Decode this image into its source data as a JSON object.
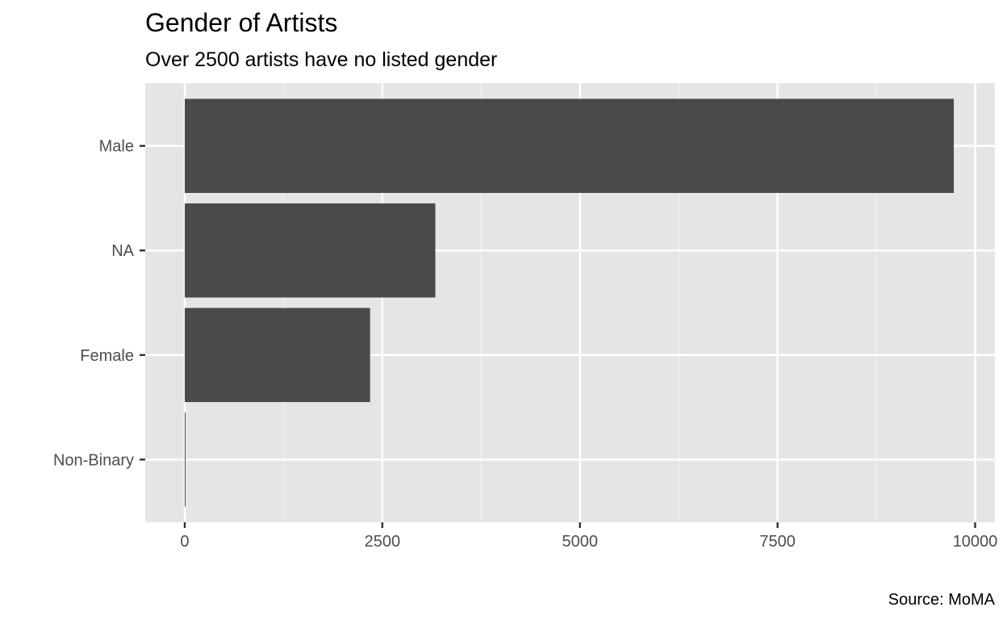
{
  "chart_data": {
    "type": "bar",
    "orientation": "horizontal",
    "title": "Gender of Artists",
    "subtitle": "Over 2500 artists have no listed gender",
    "caption": "Source: MoMA",
    "xlabel": "",
    "ylabel": "",
    "categories": [
      "Male",
      "NA",
      "Female",
      "Non-Binary"
    ],
    "values": [
      9730,
      3170,
      2345,
      5
    ],
    "xlim": [
      -500,
      10250
    ],
    "x_ticks": [
      0,
      2500,
      5000,
      7500,
      10000
    ],
    "x_tick_labels": [
      "0",
      "2500",
      "5000",
      "7500",
      "10000"
    ],
    "grid": true,
    "legend": "none",
    "colors": {
      "bar": "#4a4a4a",
      "panel_background": "#e5e5e5",
      "grid_major": "#ffffff",
      "grid_minor": "#f2f2f2",
      "tick_text": "#4d4d4d",
      "tick_mark": "#333333"
    }
  }
}
